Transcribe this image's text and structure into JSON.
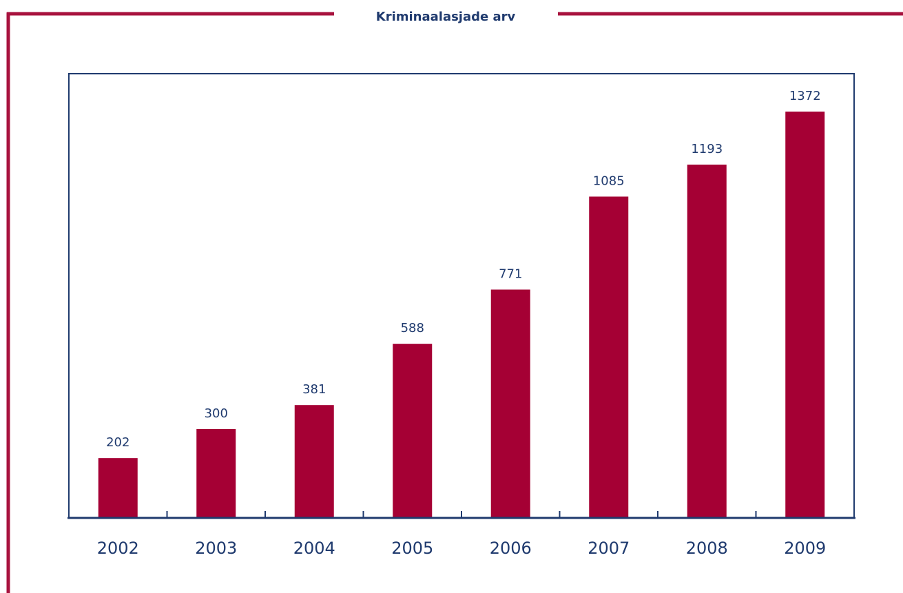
{
  "chart_data": {
    "type": "bar",
    "title": "Kriminaalasjade arv",
    "categories": [
      "2002",
      "2003",
      "2004",
      "2005",
      "2006",
      "2007",
      "2008",
      "2009"
    ],
    "values": [
      202,
      300,
      381,
      588,
      771,
      1085,
      1193,
      1372
    ],
    "color": "#a50034",
    "ylim": [
      0,
      1500
    ]
  }
}
